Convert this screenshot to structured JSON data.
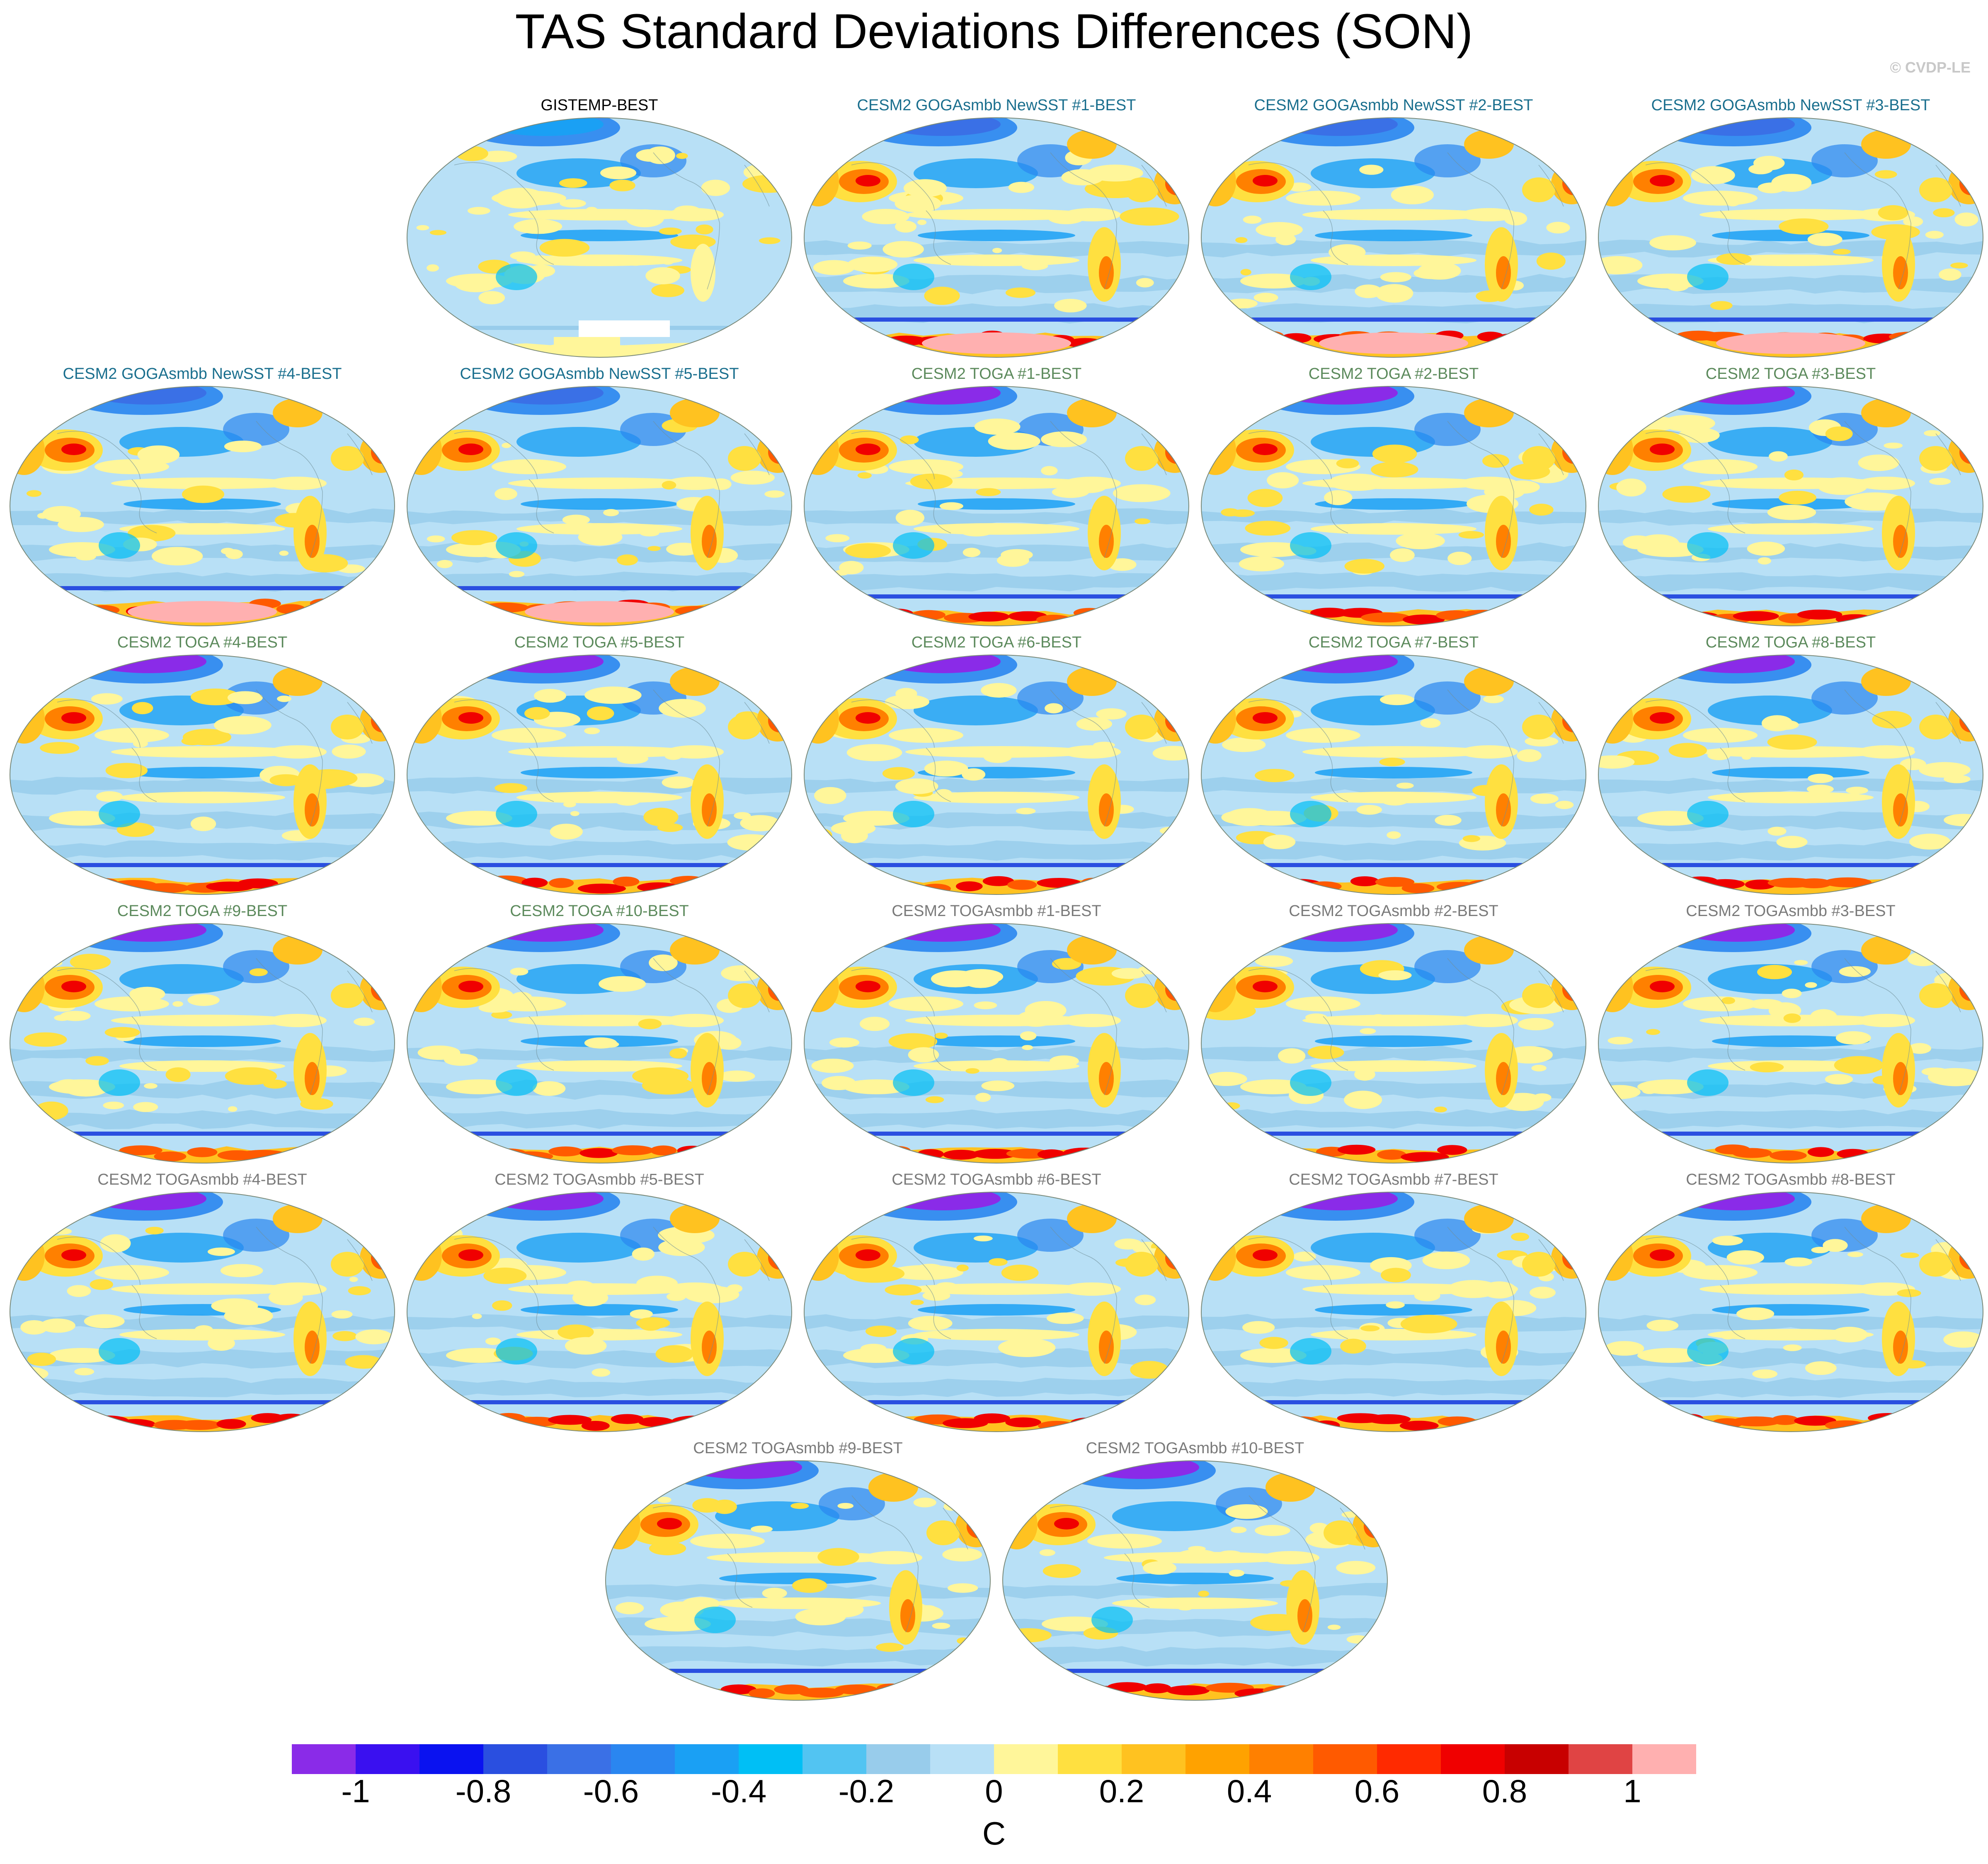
{
  "title": "TAS Standard Deviations Differences (SON)",
  "credit": "© CVDP-LE",
  "panels": [
    {
      "title": "GISTEMP-BEST",
      "color": "#000000",
      "kind": "obs"
    },
    {
      "title": "CESM2 GOGAsmbb NewSST #1-BEST",
      "color": "#1a6f8e",
      "kind": "goga"
    },
    {
      "title": "CESM2 GOGAsmbb NewSST #2-BEST",
      "color": "#1a6f8e",
      "kind": "goga"
    },
    {
      "title": "CESM2 GOGAsmbb NewSST #3-BEST",
      "color": "#1a6f8e",
      "kind": "goga"
    },
    {
      "title": "CESM2 GOGAsmbb NewSST #4-BEST",
      "color": "#1a6f8e",
      "kind": "goga"
    },
    {
      "title": "CESM2 GOGAsmbb NewSST #5-BEST",
      "color": "#1a6f8e",
      "kind": "goga"
    },
    {
      "title": "CESM2 TOGA #1-BEST",
      "color": "#5c8a5c",
      "kind": "toga"
    },
    {
      "title": "CESM2 TOGA #2-BEST",
      "color": "#5c8a5c",
      "kind": "toga"
    },
    {
      "title": "CESM2 TOGA #3-BEST",
      "color": "#5c8a5c",
      "kind": "toga"
    },
    {
      "title": "CESM2 TOGA #4-BEST",
      "color": "#5c8a5c",
      "kind": "toga"
    },
    {
      "title": "CESM2 TOGA #5-BEST",
      "color": "#5c8a5c",
      "kind": "toga"
    },
    {
      "title": "CESM2 TOGA #6-BEST",
      "color": "#5c8a5c",
      "kind": "toga"
    },
    {
      "title": "CESM2 TOGA #7-BEST",
      "color": "#5c8a5c",
      "kind": "toga"
    },
    {
      "title": "CESM2 TOGA #8-BEST",
      "color": "#5c8a5c",
      "kind": "toga"
    },
    {
      "title": "CESM2 TOGA #9-BEST",
      "color": "#5c8a5c",
      "kind": "toga"
    },
    {
      "title": "CESM2 TOGA #10-BEST",
      "color": "#5c8a5c",
      "kind": "toga"
    },
    {
      "title": "CESM2 TOGAsmbb #1-BEST",
      "color": "#7a7a7a",
      "kind": "togasmbb"
    },
    {
      "title": "CESM2 TOGAsmbb #2-BEST",
      "color": "#7a7a7a",
      "kind": "togasmbb"
    },
    {
      "title": "CESM2 TOGAsmbb #3-BEST",
      "color": "#7a7a7a",
      "kind": "togasmbb"
    },
    {
      "title": "CESM2 TOGAsmbb #4-BEST",
      "color": "#7a7a7a",
      "kind": "togasmbb"
    },
    {
      "title": "CESM2 TOGAsmbb #5-BEST",
      "color": "#7a7a7a",
      "kind": "togasmbb"
    },
    {
      "title": "CESM2 TOGAsmbb #6-BEST",
      "color": "#7a7a7a",
      "kind": "togasmbb"
    },
    {
      "title": "CESM2 TOGAsmbb #7-BEST",
      "color": "#7a7a7a",
      "kind": "togasmbb"
    },
    {
      "title": "CESM2 TOGAsmbb #8-BEST",
      "color": "#7a7a7a",
      "kind": "togasmbb"
    },
    {
      "title": "CESM2 TOGAsmbb #9-BEST",
      "color": "#7a7a7a",
      "kind": "togasmbb"
    },
    {
      "title": "CESM2 TOGAsmbb #10-BEST",
      "color": "#7a7a7a",
      "kind": "togasmbb"
    }
  ],
  "colorbar": {
    "unit": "C",
    "min": -1.1,
    "max": 1.1,
    "tick_values": [
      -1,
      -0.8,
      -0.6,
      -0.4,
      -0.2,
      0,
      0.2,
      0.4,
      0.6,
      0.8,
      1
    ],
    "tick_labels": [
      "-1",
      "-0.8",
      "-0.6",
      "-0.4",
      "-0.2",
      "0",
      "0.2",
      "0.4",
      "0.6",
      "0.8",
      "1"
    ],
    "colors": [
      "#8a2be8",
      "#3a10f0",
      "#0a12f0",
      "#2a4fe0",
      "#3a70e6",
      "#2a86f0",
      "#1aa0f4",
      "#00bff5",
      "#52c4f2",
      "#98cceb",
      "#b8e0f6",
      "#fff69a",
      "#ffe040",
      "#ffc220",
      "#ffa200",
      "#ff8000",
      "#ff5a00",
      "#ff2a00",
      "#f00000",
      "#c80000",
      "#e04444",
      "#ffb0b0"
    ]
  }
}
